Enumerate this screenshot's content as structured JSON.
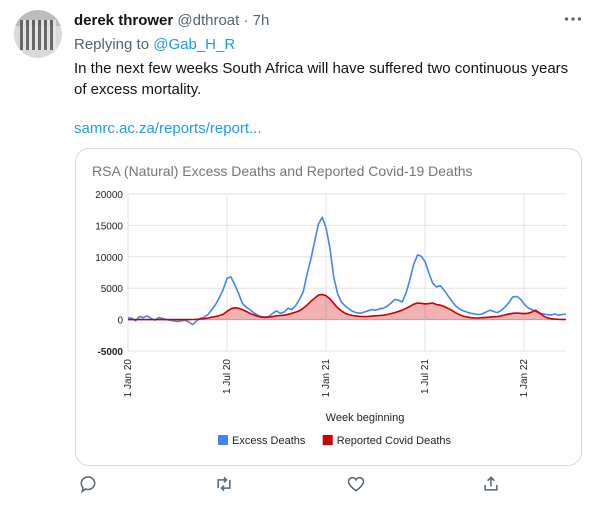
{
  "tweet": {
    "display_name": "derek thrower",
    "handle": "@dthroat",
    "separator": "·",
    "time": "7h",
    "replying_to_label": "Replying to",
    "replying_to_handle": "@Gab_H_R",
    "text": "In the next few weeks South Africa will have suffered two continuous years of excess mortality.",
    "link_text": "samrc.ac.za/reports/report..."
  },
  "icons": {
    "more": "more-icon",
    "reply": "reply-icon",
    "retweet": "retweet-icon",
    "like": "like-icon",
    "share": "share-icon"
  },
  "chart_data": {
    "type": "area",
    "title": "RSA (Natural) Excess Deaths and Reported Covid-19 Deaths",
    "xlabel": "Week beginning",
    "ylabel": "",
    "ylim": [
      -5000,
      20000
    ],
    "yticks": [
      20000,
      15000,
      10000,
      5000,
      0,
      -5000
    ],
    "xticks": [
      "1 Jan 20",
      "1 Jul 20",
      "1 Jan 21",
      "1 Jul 21",
      "1 Jan 22"
    ],
    "xtick_weeks": [
      0,
      26,
      52,
      78,
      104
    ],
    "grid": true,
    "legend": "bottom",
    "series": [
      {
        "name": "Excess Deaths",
        "color": "#4285f4",
        "values": [
          300,
          200,
          -200,
          500,
          300,
          600,
          200,
          -100,
          300,
          200,
          0,
          -100,
          -200,
          -300,
          -200,
          -100,
          -400,
          -800,
          -200,
          200,
          400,
          800,
          1600,
          2400,
          3500,
          4800,
          6600,
          6800,
          5600,
          4200,
          2600,
          2000,
          1600,
          1100,
          700,
          500,
          400,
          500,
          1000,
          1400,
          1000,
          1200,
          1800,
          1600,
          2200,
          3200,
          4400,
          7200,
          9600,
          12400,
          15200,
          16300,
          14600,
          11400,
          6800,
          4200,
          2800,
          2200,
          1700,
          1300,
          1100,
          1000,
          1200,
          1400,
          1600,
          1500,
          1700,
          1800,
          2100,
          2600,
          3200,
          3100,
          2800,
          4200,
          6300,
          8800,
          10300,
          10100,
          9200,
          7400,
          5800,
          5200,
          5400,
          4700,
          3800,
          3000,
          2200,
          1700,
          1400,
          1200,
          1000,
          900,
          800,
          900,
          1200,
          1500,
          1300,
          1100,
          1500,
          2000,
          2700,
          3600,
          3700,
          3300,
          2500,
          1900,
          1600,
          1300,
          1000,
          900,
          800,
          700,
          900,
          700,
          800,
          900
        ],
        "fill": false
      },
      {
        "name": "Reported Covid Deaths",
        "color": "#cc0000",
        "values": [
          0,
          0,
          0,
          0,
          0,
          0,
          0,
          0,
          0,
          0,
          0,
          0,
          0,
          0,
          0,
          0,
          0,
          20,
          50,
          100,
          150,
          250,
          380,
          500,
          650,
          850,
          1300,
          1700,
          1900,
          1800,
          1600,
          1300,
          1000,
          750,
          550,
          400,
          350,
          400,
          500,
          600,
          650,
          700,
          850,
          1000,
          1200,
          1400,
          1800,
          2300,
          2900,
          3400,
          3900,
          4000,
          3800,
          3300,
          2600,
          1900,
          1400,
          1000,
          800,
          650,
          550,
          500,
          500,
          500,
          550,
          600,
          650,
          700,
          800,
          950,
          1100,
          1300,
          1500,
          1800,
          2100,
          2450,
          2650,
          2600,
          2500,
          2550,
          2650,
          2400,
          2300,
          2100,
          1800,
          1500,
          1100,
          800,
          550,
          400,
          300,
          250,
          250,
          300,
          350,
          400,
          450,
          500,
          600,
          750,
          900,
          1000,
          1050,
          1000,
          950,
          1000,
          1200,
          1500,
          1100,
          600,
          300,
          150,
          80,
          50,
          30,
          20
        ],
        "fill": true
      }
    ]
  }
}
